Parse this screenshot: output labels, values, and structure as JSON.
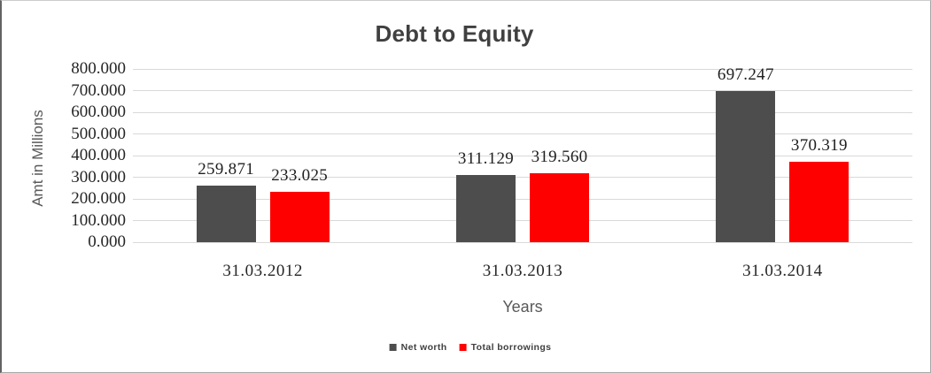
{
  "chart_data": {
    "type": "bar",
    "title": "Debt to Equity",
    "xlabel": "Years",
    "ylabel": "Amt in Millions",
    "categories": [
      "31.03.2012",
      "31.03.2013",
      "31.03.2014"
    ],
    "series": [
      {
        "name": "Net worth",
        "color": "#4d4d4d",
        "values": [
          259.871,
          311.129,
          697.247
        ],
        "value_labels": [
          "259.871",
          "311.129",
          "697.247"
        ]
      },
      {
        "name": "Total borrowings",
        "color": "#ff0000",
        "values": [
          233.025,
          319.56,
          370.319
        ],
        "value_labels": [
          "233.025",
          "319.560",
          "370.319"
        ]
      }
    ],
    "ylim": [
      0,
      800
    ],
    "ytick_step": 100,
    "ytick_labels": [
      "0.000",
      "100.000",
      "200.000",
      "300.000",
      "400.000",
      "500.000",
      "600.000",
      "700.000",
      "800.000"
    ],
    "grid": true,
    "data_labels": true,
    "legend_position": "bottom",
    "colors": {
      "background": "#ffffff",
      "gridline": "#d9d9d9",
      "title_text": "#404040",
      "tick_text": "#262626",
      "data_label_text": "#1f1f1f",
      "axis_title_text": "#595959",
      "legend_text": "#404040"
    }
  }
}
